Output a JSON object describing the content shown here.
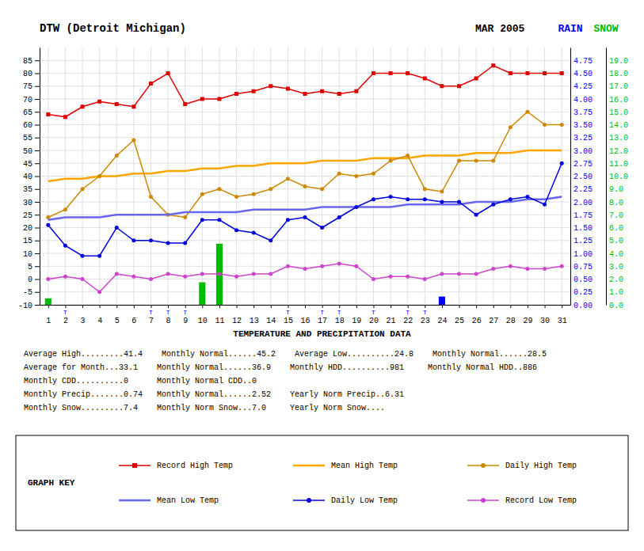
{
  "chart_data": {
    "type": "line",
    "title": "DTW (Detroit Michigan)",
    "subtitle": "MAR 2005",
    "y2label": "RAIN",
    "y3label": "SNOW",
    "x": [
      1,
      2,
      3,
      4,
      5,
      6,
      7,
      8,
      9,
      10,
      11,
      12,
      13,
      14,
      15,
      16,
      17,
      18,
      19,
      20,
      21,
      22,
      23,
      24,
      25,
      26,
      27,
      28,
      29,
      30,
      31
    ],
    "xlim": [
      0.5,
      31.5
    ],
    "xticks": [
      1,
      2,
      3,
      4,
      5,
      6,
      7,
      8,
      9,
      10,
      11,
      12,
      13,
      14,
      15,
      16,
      17,
      18,
      19,
      20,
      21,
      22,
      23,
      24,
      25,
      26,
      27,
      28,
      29,
      30,
      31
    ],
    "ylim": [
      -10,
      90
    ],
    "yticks": [
      -10,
      -5,
      0,
      5,
      10,
      15,
      20,
      25,
      30,
      35,
      40,
      45,
      50,
      55,
      60,
      65,
      70,
      75,
      80,
      85
    ],
    "y2lim": [
      0,
      5
    ],
    "y2ticks": [
      {
        "value": 0,
        "label": "0.00"
      },
      {
        "value": 0.25,
        "label": "0.25"
      },
      {
        "value": 0.5,
        "label": "0.50"
      },
      {
        "value": 0.75,
        "label": "0.75"
      },
      {
        "value": 1,
        "label": "1.00"
      },
      {
        "value": 1.25,
        "label": "1.25"
      },
      {
        "value": 1.5,
        "label": "1.50"
      },
      {
        "value": 1.75,
        "label": "1.75"
      },
      {
        "value": 2,
        "label": "2.00"
      },
      {
        "value": 2.25,
        "label": "2.25"
      },
      {
        "value": 2.5,
        "label": "2.50"
      },
      {
        "value": 2.75,
        "label": "2.75"
      },
      {
        "value": 3,
        "label": "3.00"
      },
      {
        "value": 3.25,
        "label": "3.25"
      },
      {
        "value": 3.5,
        "label": "3.50"
      },
      {
        "value": 3.75,
        "label": "3.75"
      },
      {
        "value": 4,
        "label": "4.00"
      },
      {
        "value": 4.25,
        "label": "4.25"
      },
      {
        "value": 4.5,
        "label": "4.50"
      },
      {
        "value": 4.75,
        "label": "4.75"
      }
    ],
    "y3lim": [
      0,
      20
    ],
    "y3ticks": [
      {
        "value": 0,
        "label": "0.0"
      },
      {
        "value": 1,
        "label": "1.0"
      },
      {
        "value": 2,
        "label": "2.0"
      },
      {
        "value": 3,
        "label": "3.0"
      },
      {
        "value": 4,
        "label": "4.0"
      },
      {
        "value": 5,
        "label": "5.0"
      },
      {
        "value": 6,
        "label": "6.0"
      },
      {
        "value": 7,
        "label": "7.0"
      },
      {
        "value": 8,
        "label": "8.0"
      },
      {
        "value": 9,
        "label": "9.0"
      },
      {
        "value": 10,
        "label": "10.0"
      },
      {
        "value": 11,
        "label": "11.0"
      },
      {
        "value": 12,
        "label": "12.0"
      },
      {
        "value": 13,
        "label": "13.0"
      },
      {
        "value": 14,
        "label": "14.0"
      },
      {
        "value": 15,
        "label": "15.0"
      },
      {
        "value": 16,
        "label": "16.0"
      },
      {
        "value": 17,
        "label": "17.0"
      },
      {
        "value": 18,
        "label": "18.0"
      },
      {
        "value": 19,
        "label": "19.0"
      }
    ],
    "grid": true,
    "legend": "bottom",
    "legend_title": "GRAPH KEY",
    "series": [
      {
        "type": "bar",
        "axis": "y2",
        "color": "#0000ff",
        "values": [
          0,
          0,
          0,
          0,
          0,
          0,
          0,
          0,
          0,
          0,
          0,
          0,
          0,
          0,
          0,
          0,
          0,
          0,
          0,
          0,
          0,
          0,
          0,
          0.16,
          0,
          0,
          0,
          0,
          0,
          0,
          0
        ]
      },
      {
        "type": "bar",
        "axis": "y3",
        "color": "#00bb00",
        "values": [
          0.5,
          0,
          0,
          0,
          0,
          0,
          0,
          0,
          0,
          1.75,
          4.75,
          0,
          0,
          0,
          0,
          0,
          0,
          0,
          0,
          0,
          0,
          0,
          0,
          0,
          0,
          0,
          0,
          0,
          0,
          0,
          0
        ]
      },
      {
        "name": "Record High Temp",
        "type": "line",
        "marker": "square",
        "color": "#dd0000",
        "values": [
          64,
          63,
          67,
          69,
          68,
          67,
          76,
          80,
          68,
          70,
          70,
          72,
          73,
          75,
          74,
          72,
          73,
          72,
          73,
          80,
          80,
          80,
          78,
          75,
          75,
          78,
          83,
          80,
          80,
          80,
          80
        ]
      },
      {
        "name": "Mean High Temp",
        "type": "line",
        "marker": "none",
        "color": "#ffa500",
        "values": [
          38,
          39,
          39,
          40,
          40,
          41,
          41,
          42,
          42,
          43,
          43,
          44,
          44,
          45,
          45,
          45,
          46,
          46,
          46,
          47,
          47,
          47,
          48,
          48,
          48,
          49,
          49,
          49,
          50,
          50,
          50
        ]
      },
      {
        "name": "Daily High Temp",
        "type": "line",
        "marker": "circle",
        "color": "#cc8800",
        "values": [
          24,
          27,
          35,
          40,
          48,
          54,
          32,
          25,
          24,
          33,
          35,
          32,
          33,
          35,
          39,
          36,
          35,
          41,
          40,
          41,
          46,
          48,
          35,
          34,
          46,
          46,
          46,
          59,
          65,
          60,
          60
        ]
      },
      {
        "name": "Mean Low Temp",
        "type": "line",
        "marker": "none",
        "color": "#6666ee",
        "values": [
          23,
          24,
          24,
          24,
          25,
          25,
          25,
          25,
          26,
          26,
          26,
          26,
          27,
          27,
          27,
          27,
          28,
          28,
          28,
          28,
          28,
          29,
          29,
          29,
          29,
          30,
          30,
          30,
          31,
          31,
          32
        ]
      },
      {
        "name": "Daily Low Temp",
        "type": "line",
        "marker": "circle",
        "color": "#0000dd",
        "values": [
          21,
          13,
          9,
          9,
          20,
          15,
          15,
          14,
          14,
          23,
          23,
          19,
          18,
          15,
          23,
          24,
          20,
          24,
          28,
          31,
          32,
          31,
          31,
          30,
          30,
          25,
          29,
          31,
          32,
          29,
          45
        ]
      },
      {
        "name": "Record Low Temp",
        "type": "line",
        "marker": "circle",
        "color": "#cc44cc",
        "values": [
          0,
          1,
          0,
          -5,
          2,
          1,
          0,
          2,
          1,
          2,
          2,
          1,
          2,
          2,
          5,
          4,
          5,
          6,
          5,
          0,
          1,
          1,
          0,
          2,
          2,
          2,
          4,
          5,
          4,
          4,
          5
        ]
      }
    ],
    "annotations": [
      {
        "x": 2,
        "text": "T"
      },
      {
        "x": 7,
        "text": "T"
      },
      {
        "x": 8,
        "text": "T"
      },
      {
        "x": 9,
        "text": "T"
      },
      {
        "x": 15,
        "text": "T"
      },
      {
        "x": 17,
        "text": "T"
      },
      {
        "x": 18,
        "text": "T"
      },
      {
        "x": 20,
        "text": "T"
      },
      {
        "x": 22,
        "text": "T"
      },
      {
        "x": 23,
        "text": "T"
      }
    ],
    "stats_title": "TEMPERATURE AND PRECIPITATION DATA",
    "stats_lines": [
      "Average High.........41.4    Monthly Normal......45.2    Average Low..........24.8    Monthly Normal......28.5",
      "Average for Month...33.1    Monthly Normal......36.9    Monthly HDD..........981     Monthly Normal HDD..886",
      "Monthly CDD..........0      Monthly Normal CDD..0",
      "Monthly Precip.......0.74   Monthly Normal......2.52    Yearly Norm Precip..6.31",
      "Monthly Snow.........7.4    Monthly Norm Snow...7.0     Yearly Norm Snow...."
    ]
  }
}
